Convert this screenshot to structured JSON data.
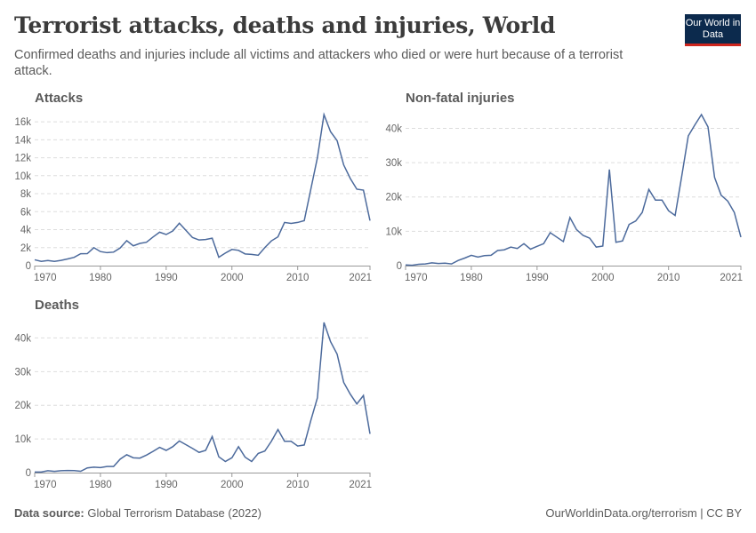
{
  "header": {
    "title": "Terrorist attacks, deaths and injuries, World",
    "subtitle": "Confirmed deaths and injuries include all victims and attackers who died or were hurt because of a terrorist attack.",
    "logo": "Our World in Data"
  },
  "footer": {
    "source_label": "Data source:",
    "source": "Global Terrorism Database (2022)",
    "url": "OurWorldinData.org/terrorism | CC BY"
  },
  "colors": {
    "line": "#4c6a9c",
    "grid": "#dddddd"
  },
  "chart_data": [
    {
      "type": "line",
      "title": "Attacks",
      "x": [
        1970,
        1971,
        1972,
        1973,
        1974,
        1975,
        1976,
        1977,
        1978,
        1979,
        1980,
        1981,
        1982,
        1983,
        1984,
        1985,
        1986,
        1987,
        1988,
        1989,
        1990,
        1991,
        1992,
        1994,
        1995,
        1996,
        1997,
        1998,
        1999,
        2000,
        2001,
        2002,
        2003,
        2004,
        2005,
        2006,
        2007,
        2008,
        2009,
        2010,
        2011,
        2012,
        2013,
        2014,
        2015,
        2016,
        2017,
        2018,
        2019,
        2020,
        2021
      ],
      "values": [
        650,
        470,
        570,
        470,
        580,
        740,
        920,
        1320,
        1330,
        2000,
        1560,
        1440,
        1500,
        1960,
        2780,
        2200,
        2470,
        2600,
        3180,
        3720,
        3460,
        3850,
        4720,
        3130,
        2850,
        2900,
        3050,
        930,
        1400,
        1800,
        1700,
        1300,
        1250,
        1150,
        2000,
        2750,
        3200,
        4800,
        4700,
        4800,
        5000,
        8500,
        12000,
        16800,
        14900,
        13900,
        11200,
        9700,
        8500,
        8400,
        5000
      ],
      "yticks": [
        0,
        2000,
        4000,
        6000,
        8000,
        10000,
        12000,
        14000,
        16000
      ],
      "ytick_labels": [
        "0",
        "2k",
        "4k",
        "6k",
        "8k",
        "10k",
        "12k",
        "14k",
        "16k"
      ],
      "ylim": [
        0,
        16800
      ],
      "xticks": [
        1970,
        1980,
        1990,
        2000,
        2010,
        2021
      ],
      "xlim": [
        1970,
        2021
      ],
      "grid": true
    },
    {
      "type": "line",
      "title": "Non-fatal injuries",
      "x": [
        1970,
        1971,
        1972,
        1973,
        1974,
        1975,
        1976,
        1977,
        1978,
        1979,
        1980,
        1981,
        1982,
        1983,
        1984,
        1985,
        1986,
        1987,
        1988,
        1989,
        1990,
        1991,
        1992,
        1994,
        1995,
        1996,
        1997,
        1998,
        1999,
        2000,
        2001,
        2002,
        2003,
        2004,
        2005,
        2006,
        2007,
        2008,
        2009,
        2010,
        2011,
        2012,
        2013,
        2014,
        2015,
        2016,
        2017,
        2018,
        2019,
        2020,
        2021
      ],
      "values": [
        200,
        100,
        400,
        500,
        800,
        600,
        700,
        500,
        1500,
        2200,
        3000,
        2500,
        2900,
        3000,
        4400,
        4600,
        5400,
        5000,
        6400,
        4800,
        5600,
        6400,
        9600,
        7000,
        14000,
        10500,
        8800,
        8000,
        5400,
        5700,
        28000,
        6800,
        7200,
        12000,
        13000,
        15500,
        22200,
        19100,
        19100,
        16000,
        14600,
        26000,
        37800,
        41000,
        44000,
        40400,
        25700,
        20500,
        18800,
        15500,
        8300
      ],
      "yticks": [
        0,
        10000,
        20000,
        30000,
        40000
      ],
      "ytick_labels": [
        "0",
        "10k",
        "20k",
        "30k",
        "40k"
      ],
      "ylim": [
        0,
        44000
      ],
      "xticks": [
        1970,
        1980,
        1990,
        2000,
        2010,
        2021
      ],
      "xlim": [
        1970,
        2021
      ],
      "grid": true
    },
    {
      "type": "line",
      "title": "Deaths",
      "x": [
        1970,
        1971,
        1972,
        1973,
        1974,
        1975,
        1976,
        1977,
        1978,
        1979,
        1980,
        1981,
        1982,
        1983,
        1984,
        1985,
        1986,
        1987,
        1988,
        1989,
        1990,
        1991,
        1992,
        1994,
        1995,
        1996,
        1997,
        1998,
        1999,
        2000,
        2001,
        2002,
        2003,
        2004,
        2005,
        2006,
        2007,
        2008,
        2009,
        2010,
        2011,
        2012,
        2013,
        2014,
        2015,
        2016,
        2017,
        2018,
        2019,
        2020,
        2021
      ],
      "values": [
        170,
        170,
        570,
        370,
        550,
        620,
        600,
        400,
        1400,
        1600,
        1500,
        1800,
        1800,
        4000,
        5300,
        4400,
        4300,
        5200,
        6300,
        7500,
        6600,
        7700,
        9400,
        7200,
        6000,
        6600,
        10700,
        4700,
        3300,
        4400,
        7700,
        4600,
        3300,
        5700,
        6400,
        9300,
        12800,
        9300,
        9300,
        7900,
        8200,
        15500,
        22200,
        44600,
        38900,
        35200,
        26800,
        23300,
        20400,
        22900,
        11500
      ],
      "yticks": [
        0,
        10000,
        20000,
        30000,
        40000
      ],
      "ytick_labels": [
        "0",
        "10k",
        "20k",
        "30k",
        "40k"
      ],
      "ylim": [
        0,
        44600
      ],
      "xticks": [
        1970,
        1980,
        1990,
        2000,
        2010,
        2021
      ],
      "xlim": [
        1970,
        2021
      ],
      "grid": true
    }
  ]
}
